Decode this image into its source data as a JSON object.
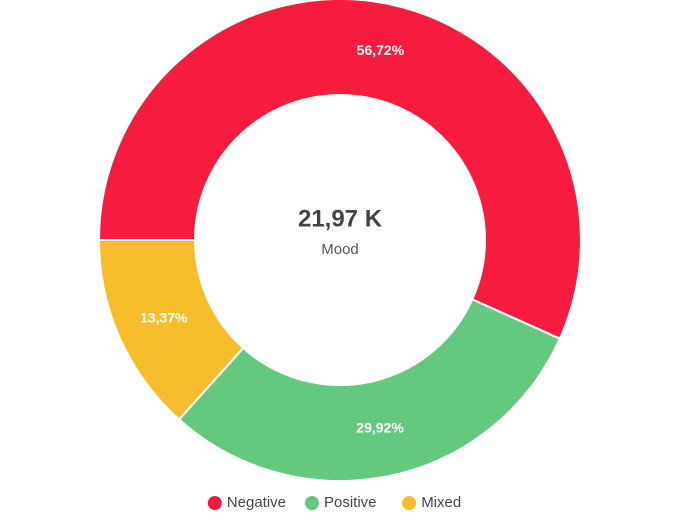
{
  "chart_data": {
    "type": "donut",
    "center_title": "21,97 K",
    "center_subtitle": "Mood",
    "categories": [
      "Negative",
      "Positive",
      "Mixed"
    ],
    "values": [
      56.72,
      29.92,
      13.37
    ],
    "value_labels": [
      "56,72%",
      "29,92%",
      "13,37%"
    ],
    "colors": [
      "#f61c3e",
      "#64c97f",
      "#f6bd2c"
    ]
  }
}
